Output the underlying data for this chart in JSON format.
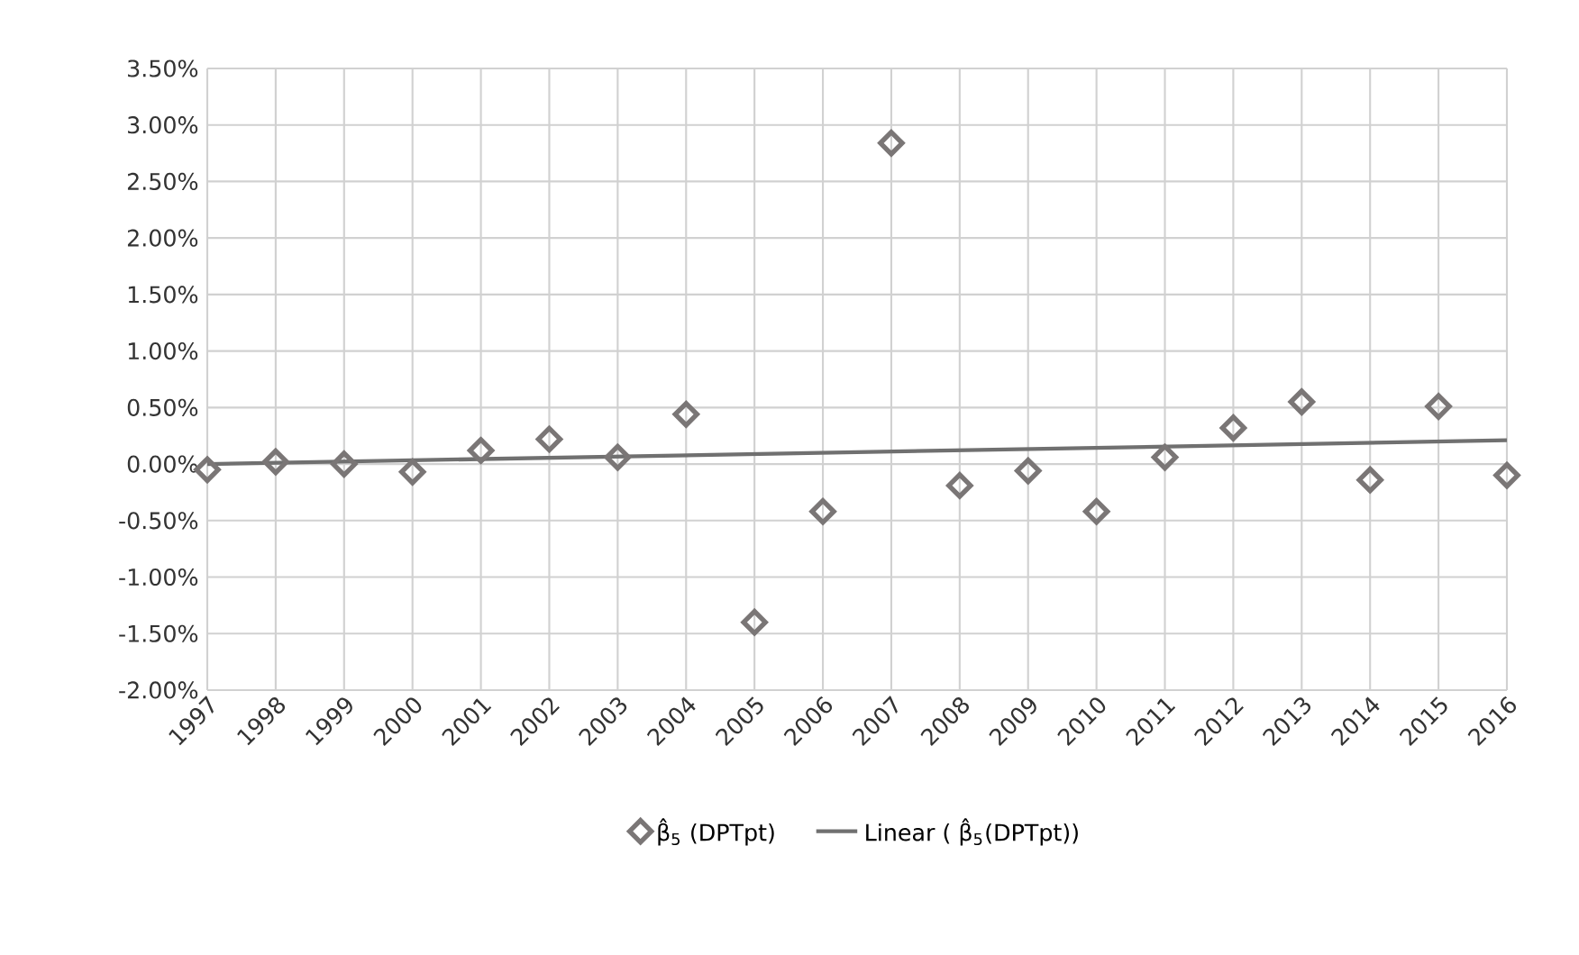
{
  "chart_data": {
    "type": "scatter",
    "x": [
      1997,
      1998,
      1999,
      2000,
      2001,
      2002,
      2003,
      2004,
      2005,
      2006,
      2007,
      2008,
      2009,
      2010,
      2011,
      2012,
      2013,
      2014,
      2015,
      2016
    ],
    "series": [
      {
        "name": "β̂$_{5}$ (DPTpt)",
        "marker": "diamond",
        "color": "#7a7676",
        "values": [
          -0.05,
          0.02,
          0.0,
          -0.07,
          0.12,
          0.22,
          0.06,
          0.44,
          -1.4,
          -0.42,
          2.84,
          -0.19,
          -0.06,
          -0.42,
          0.06,
          0.32,
          0.55,
          -0.14,
          0.51,
          -0.1
        ]
      },
      {
        "type": "line",
        "marker": "none",
        "name": "Linear ( β̂$_{5}$(DPTpt))",
        "color": "#707070",
        "x": [
          1997,
          2016
        ],
        "values": [
          0.0,
          0.21
        ]
      }
    ],
    "xlim": [
      1997,
      2016
    ],
    "xticks": [
      1997,
      1998,
      1999,
      2000,
      2001,
      2002,
      2003,
      2004,
      2005,
      2006,
      2007,
      2008,
      2009,
      2010,
      2011,
      2012,
      2013,
      2014,
      2015,
      2016
    ],
    "ylim": [
      -2.0,
      3.5
    ],
    "yticks": [
      {
        "value": -2.0,
        "label": "-2.00%"
      },
      {
        "value": -1.5,
        "label": "-1.50%"
      },
      {
        "value": -1.0,
        "label": "-1.00%"
      },
      {
        "value": -0.5,
        "label": "-0.50%"
      },
      {
        "value": 0.0,
        "label": "0.00%"
      },
      {
        "value": 0.5,
        "label": "0.50%"
      },
      {
        "value": 1.0,
        "label": "1.00%"
      },
      {
        "value": 1.5,
        "label": "1.50%"
      },
      {
        "value": 2.0,
        "label": "2.00%"
      },
      {
        "value": 2.5,
        "label": "2.50%"
      },
      {
        "value": 3.0,
        "label": "3.00%"
      },
      {
        "value": 3.5,
        "label": "3.50%"
      }
    ],
    "grid": true,
    "legend": "bottom"
  }
}
